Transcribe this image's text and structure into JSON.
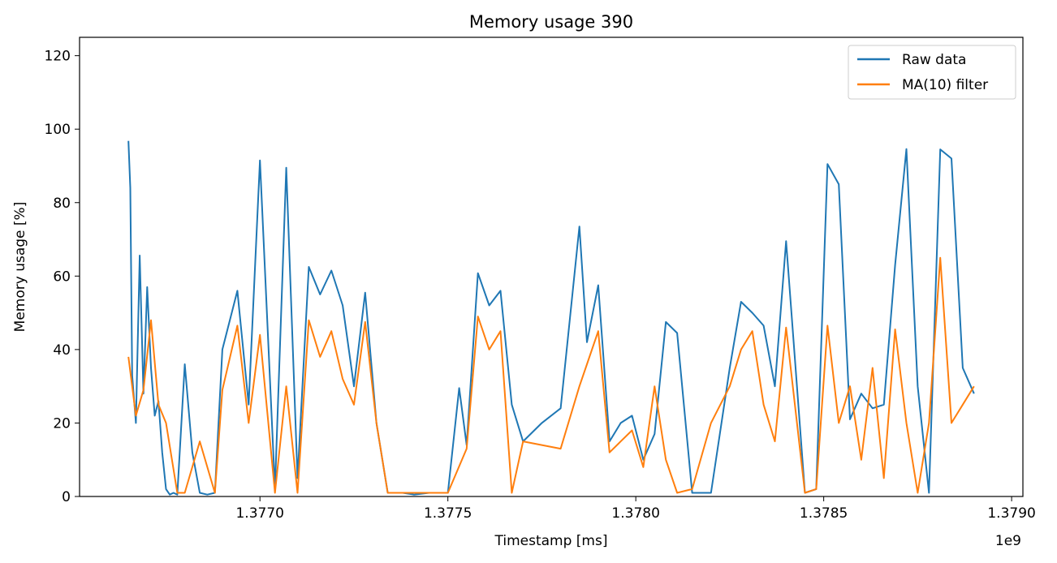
{
  "chart_data": {
    "type": "line",
    "title": "Memory usage 390",
    "xlabel": "Timestamp [ms]",
    "ylabel": "Memory usage [%]",
    "x_offset_label": "1e9",
    "xlim": [
      1.37652,
      1.37903
    ],
    "ylim": [
      0,
      125
    ],
    "x_ticks": [
      1.377,
      1.3775,
      1.378,
      1.3785,
      1.379
    ],
    "x_tick_labels": [
      "1.3770",
      "1.3775",
      "1.3780",
      "1.3785",
      "1.3790"
    ],
    "y_ticks": [
      0,
      20,
      40,
      60,
      80,
      100,
      120
    ],
    "y_tick_labels": [
      "0",
      "20",
      "40",
      "60",
      "80",
      "100",
      "120"
    ],
    "grid": false,
    "legend_position": "top-right",
    "series": [
      {
        "name": "Raw data",
        "color": "#1f77b4",
        "x": [
          1.37665,
          1.376655,
          1.37666,
          1.37667,
          1.37668,
          1.37669,
          1.3767,
          1.37671,
          1.37672,
          1.37673,
          1.37674,
          1.37675,
          1.37676,
          1.37677,
          1.37678,
          1.3768,
          1.37682,
          1.37684,
          1.37686,
          1.37688,
          1.3769,
          1.37694,
          1.37697,
          1.377,
          1.37704,
          1.37707,
          1.3771,
          1.37713,
          1.37716,
          1.37719,
          1.37722,
          1.37725,
          1.37728,
          1.37731,
          1.37734,
          1.37738,
          1.37741,
          1.37745,
          1.3775,
          1.37753,
          1.37755,
          1.37758,
          1.37761,
          1.37764,
          1.37767,
          1.3777,
          1.37775,
          1.3778,
          1.37785,
          1.37787,
          1.3779,
          1.37793,
          1.37796,
          1.37799,
          1.37802,
          1.37805,
          1.37808,
          1.37811,
          1.37815,
          1.3782,
          1.37825,
          1.37828,
          1.37831,
          1.37834,
          1.37837,
          1.3784,
          1.37845,
          1.37848,
          1.37851,
          1.37854,
          1.37857,
          1.3786,
          1.37863,
          1.37866,
          1.37869,
          1.37872,
          1.37875,
          1.37878,
          1.37881,
          1.37884,
          1.37887,
          1.3789
        ],
        "values": [
          96.8,
          84,
          33,
          20,
          65.6,
          28,
          57,
          35,
          22,
          26,
          12,
          2,
          0.5,
          1,
          0.5,
          36,
          12,
          1,
          0.5,
          1,
          40,
          56,
          25,
          91.5,
          2,
          89.5,
          5,
          62.5,
          55,
          61.5,
          52,
          30,
          55.5,
          20,
          1,
          1,
          0.5,
          1,
          1,
          29.5,
          14,
          60.8,
          52,
          56,
          25,
          15,
          20,
          24,
          73.5,
          42,
          57.5,
          15,
          20,
          22,
          10,
          17,
          47.5,
          44.5,
          1,
          1,
          35,
          53,
          50,
          46.5,
          30,
          69.5,
          1,
          2,
          90.5,
          85,
          21,
          28,
          24,
          25,
          63,
          94.6,
          30,
          1,
          94.5,
          92,
          35,
          28
        ]
      },
      {
        "name": "MA(10) filter",
        "color": "#ff7f0e",
        "x": [
          1.37665,
          1.37667,
          1.37669,
          1.37671,
          1.37673,
          1.37675,
          1.37678,
          1.3768,
          1.37684,
          1.37688,
          1.3769,
          1.37694,
          1.37697,
          1.377,
          1.37704,
          1.37707,
          1.3771,
          1.37713,
          1.37716,
          1.37719,
          1.37722,
          1.37725,
          1.37728,
          1.37731,
          1.37734,
          1.3774,
          1.3775,
          1.37755,
          1.37758,
          1.37761,
          1.37764,
          1.37767,
          1.3777,
          1.37775,
          1.3778,
          1.37785,
          1.37787,
          1.3779,
          1.37793,
          1.37796,
          1.37799,
          1.37802,
          1.37805,
          1.37808,
          1.37811,
          1.37815,
          1.3782,
          1.37825,
          1.37828,
          1.37831,
          1.37834,
          1.37837,
          1.3784,
          1.37845,
          1.37848,
          1.37851,
          1.37854,
          1.37857,
          1.3786,
          1.37863,
          1.37866,
          1.37869,
          1.37872,
          1.37875,
          1.37878,
          1.37881,
          1.37884,
          1.37887,
          1.3789
        ],
        "values": [
          38,
          22,
          29,
          48,
          25,
          20,
          1,
          1,
          15,
          1,
          29,
          46.5,
          20,
          44,
          1,
          30,
          1,
          48,
          38,
          45,
          32,
          25,
          47.5,
          20,
          1,
          1,
          1,
          13,
          49,
          40,
          45,
          1,
          15,
          14,
          13,
          30,
          36,
          45,
          12,
          15,
          18,
          8,
          30,
          10,
          1,
          2,
          20,
          30,
          40,
          45,
          25,
          15,
          46,
          1,
          2,
          46.5,
          20,
          30,
          10,
          35,
          5,
          45.5,
          20,
          1,
          20,
          65,
          20,
          25,
          30
        ]
      }
    ]
  }
}
